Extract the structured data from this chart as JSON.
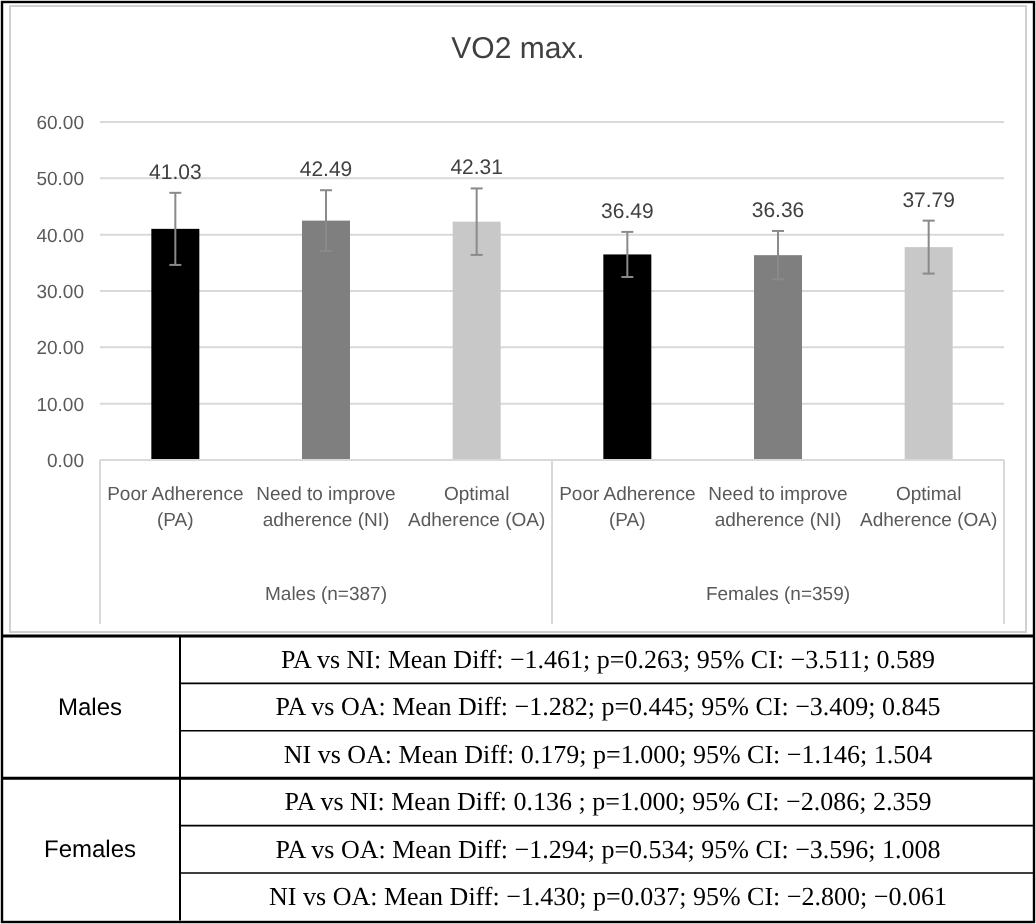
{
  "chart_data": {
    "type": "bar",
    "title": "VO2 max.",
    "categories": [
      "Poor Adherence (PA)",
      "Need to improve adherence (NI)",
      "Optimal Adherence (OA)",
      "Poor Adherence (PA)",
      "Need to improve adherence (NI)",
      "Optimal Adherence (OA)"
    ],
    "values": [
      41.03,
      42.49,
      42.31,
      36.49,
      36.36,
      37.79
    ],
    "colors": [
      "#000000",
      "#7f7f7f",
      "#c8c8c8",
      "#000000",
      "#7f7f7f",
      "#c8c8c8"
    ],
    "errors": [
      6.4,
      5.4,
      5.9,
      4.0,
      4.3,
      4.7
    ],
    "data_labels": true,
    "ylim": [
      0,
      60
    ],
    "yticks": [
      {
        "value": 0,
        "label": "0.00"
      },
      {
        "value": 10,
        "label": "10.00"
      },
      {
        "value": 20,
        "label": "20.00"
      },
      {
        "value": 30,
        "label": "30.00"
      },
      {
        "value": 40,
        "label": "40.00"
      },
      {
        "value": 50,
        "label": "50.00"
      },
      {
        "value": 60,
        "label": "60.00"
      }
    ],
    "grid": "y",
    "annotations": [
      "Males (n=387)",
      "Females (n=359)",
      "Males",
      "PA vs NI: Mean Diff: −1.461; p=0.263; 95% CI: −3.511; 0.589",
      "PA vs OA: Mean Diff: −1.282; p=0.445; 95% CI: −3.409; 0.845",
      "NI vs OA: Mean Diff: 0.179; p=1.000; 95% CI: −1.146; 1.504",
      "Females",
      "PA vs NI: Mean Diff: 0.136 ; p=1.000; 95% CI: −2.086; 2.359",
      "PA vs OA: Mean Diff: −1.294; p=0.534; 95% CI: −3.596; 1.008",
      "NI vs OA: Mean Diff: −1.430; p=0.037; 95% CI: −2.800; −0.061"
    ]
  }
}
